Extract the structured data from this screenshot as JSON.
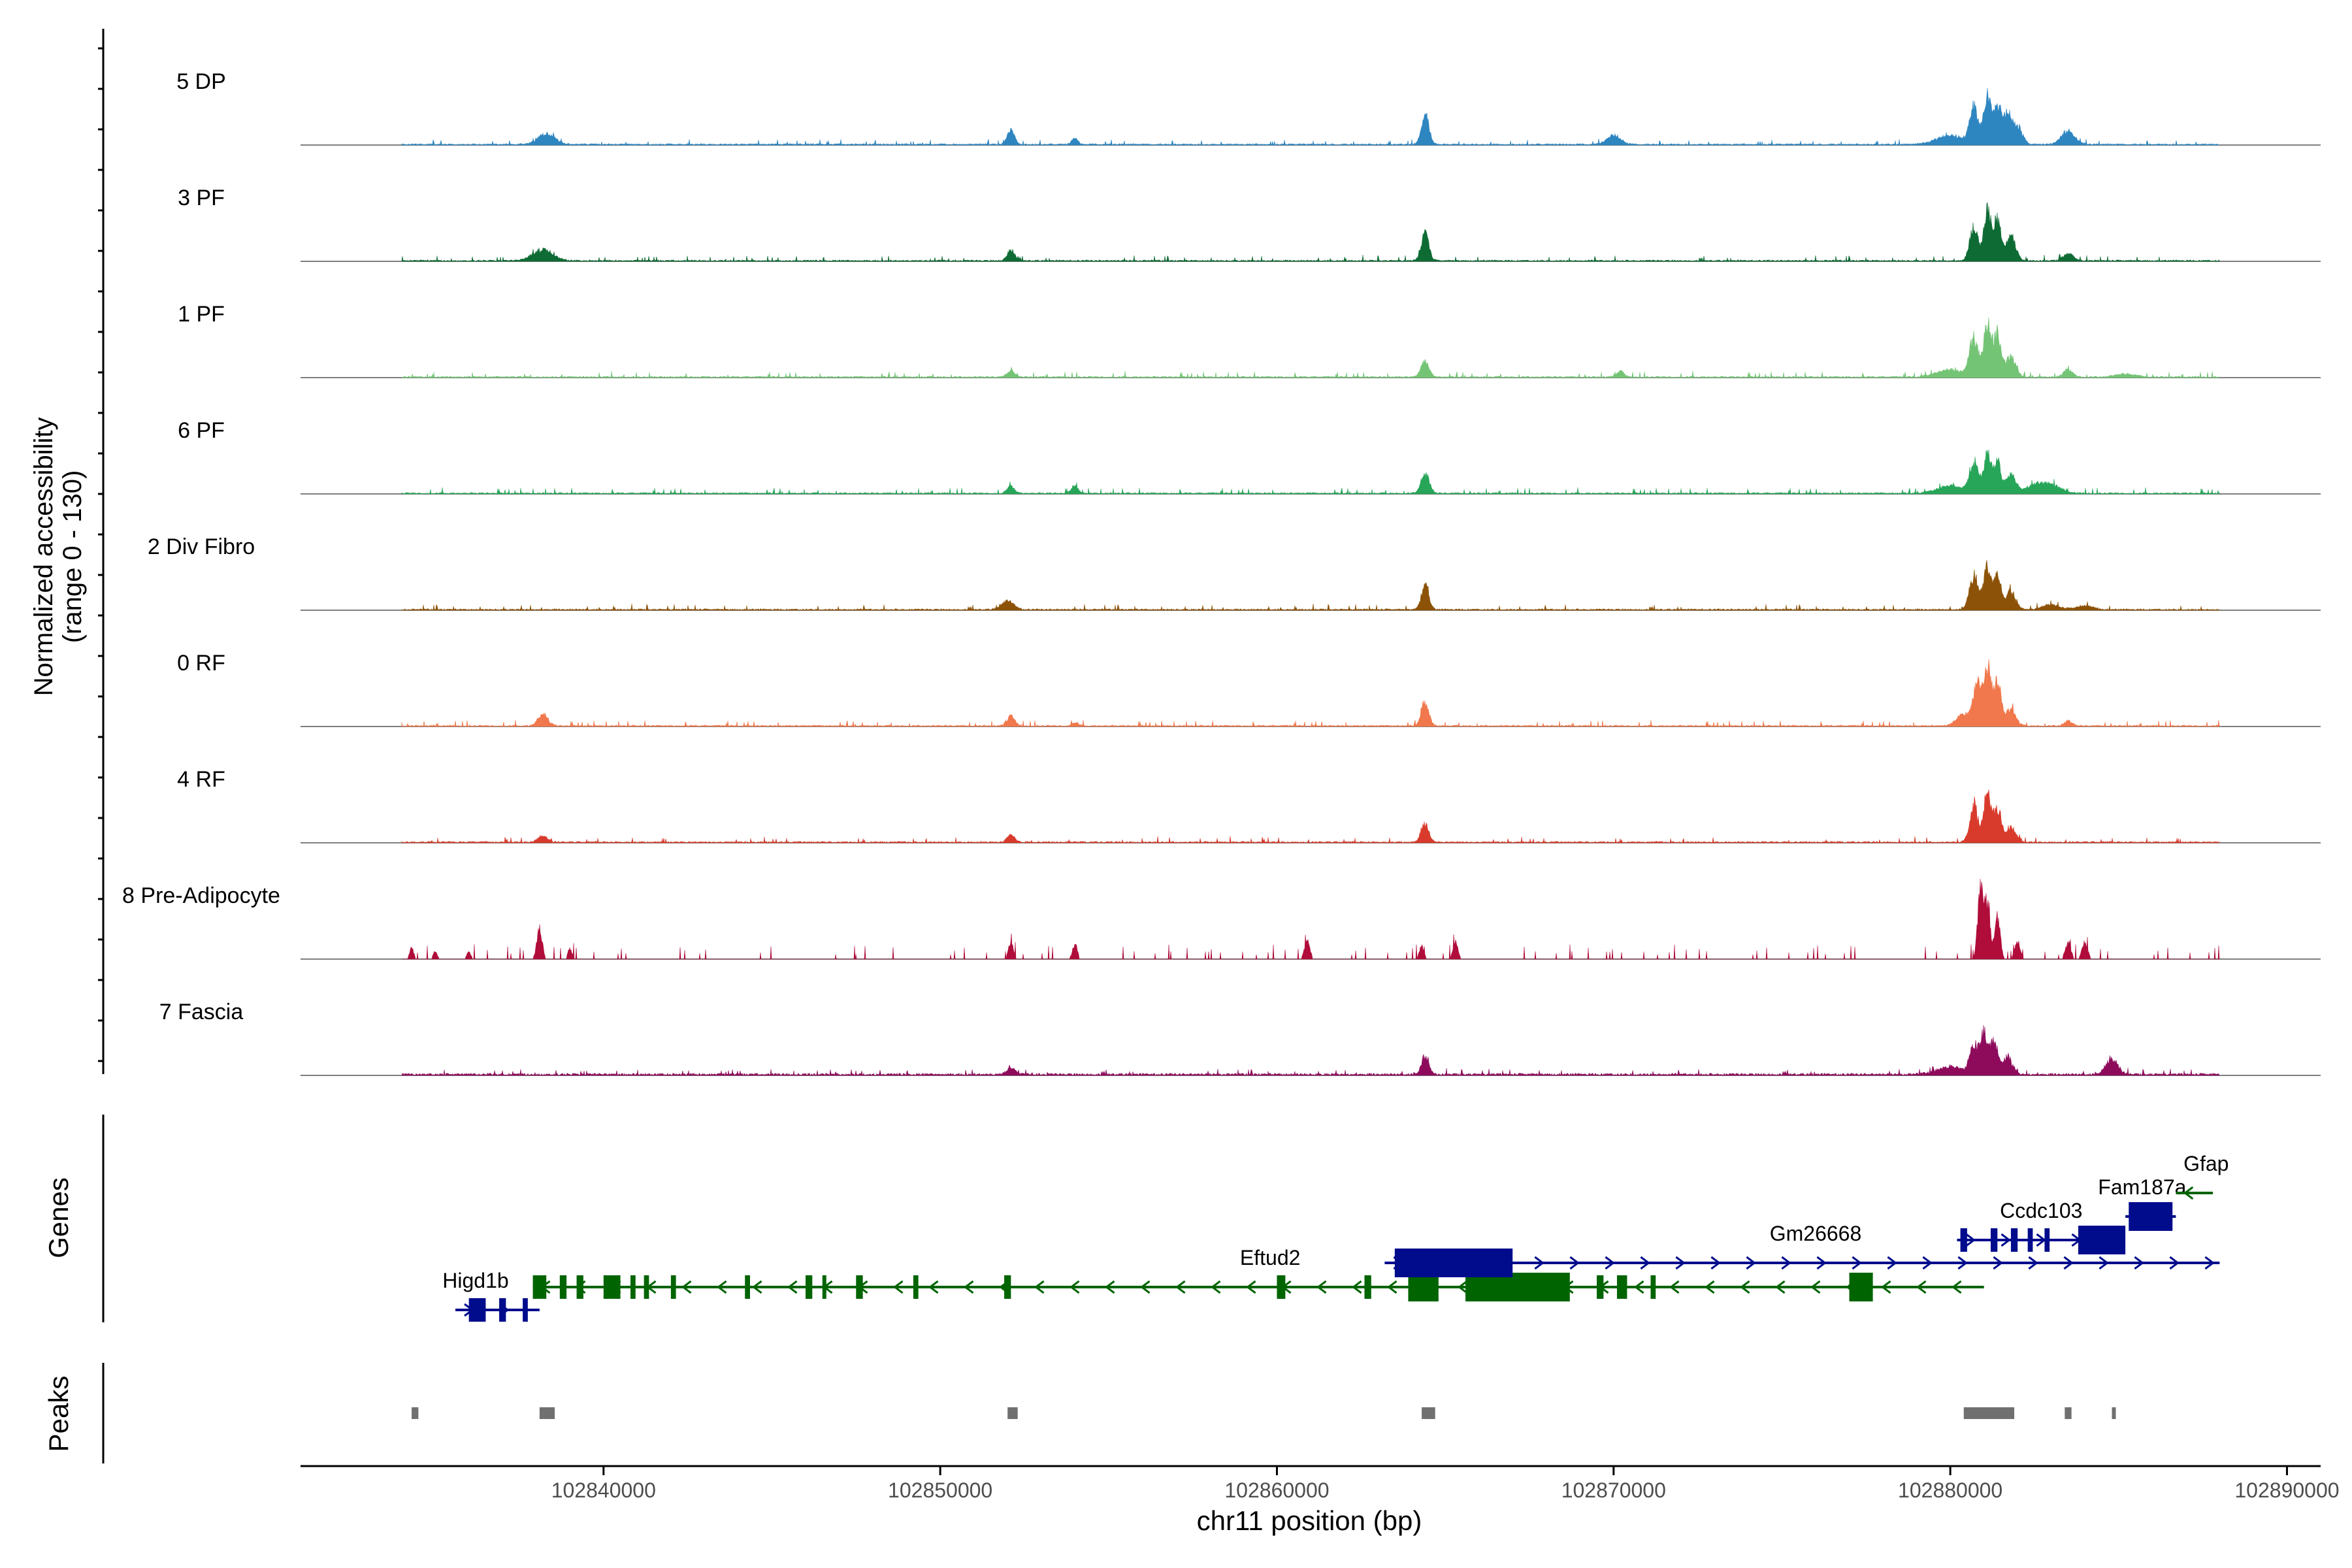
{
  "chart_data": {
    "type": "area",
    "title": "",
    "ylabel_line1": "Normalized accessibility",
    "ylabel_line2": "(range 0 - 130)",
    "genes_label": "Genes",
    "peaks_label": "Peaks",
    "xlabel": "chr11 position (bp)",
    "xlim": [
      102831000,
      102891000
    ],
    "data_range": [
      102834000,
      102888000
    ],
    "ylim": [
      0,
      130
    ],
    "xticks": [
      102840000,
      102850000,
      102860000,
      102870000,
      102880000,
      102890000
    ],
    "xtick_labels": [
      "102840000",
      "102850000",
      "102860000",
      "102870000",
      "102880000",
      "102890000"
    ],
    "tracks": [
      {
        "name": "5 DP",
        "color": "#2E86C1",
        "baseline": 2,
        "peaks": [
          [
            102838300,
            18,
            250
          ],
          [
            102852100,
            22,
            110
          ],
          [
            102854000,
            10,
            90
          ],
          [
            102864400,
            52,
            110
          ],
          [
            102870000,
            15,
            200
          ],
          [
            102880000,
            15,
            400
          ],
          [
            102880700,
            60,
            120
          ],
          [
            102881100,
            82,
            110
          ],
          [
            102881400,
            62,
            110
          ],
          [
            102881700,
            48,
            120
          ],
          [
            102882000,
            30,
            140
          ],
          [
            102883500,
            22,
            200
          ]
        ]
      },
      {
        "name": "3 PF",
        "color": "#0E6B34",
        "baseline": 2,
        "peaks": [
          [
            102838200,
            18,
            300
          ],
          [
            102852100,
            18,
            110
          ],
          [
            102864400,
            45,
            110
          ],
          [
            102880700,
            55,
            120
          ],
          [
            102881100,
            80,
            110
          ],
          [
            102881400,
            65,
            110
          ],
          [
            102881800,
            40,
            140
          ],
          [
            102883500,
            12,
            150
          ]
        ]
      },
      {
        "name": "1 PF",
        "color": "#74C476",
        "baseline": 2,
        "peaks": [
          [
            102852100,
            11,
            110
          ],
          [
            102864400,
            25,
            120
          ],
          [
            102870200,
            10,
            100
          ],
          [
            102880000,
            12,
            400
          ],
          [
            102880700,
            60,
            130
          ],
          [
            102881100,
            85,
            110
          ],
          [
            102881400,
            70,
            110
          ],
          [
            102881800,
            35,
            140
          ],
          [
            102883500,
            12,
            140
          ],
          [
            102885200,
            5,
            300
          ]
        ]
      },
      {
        "name": "6 PF",
        "color": "#27A559",
        "baseline": 2,
        "peaks": [
          [
            102852100,
            12,
            110
          ],
          [
            102854000,
            11,
            100
          ],
          [
            102864400,
            33,
            120
          ],
          [
            102880000,
            12,
            400
          ],
          [
            102880700,
            50,
            130
          ],
          [
            102881100,
            65,
            110
          ],
          [
            102881400,
            50,
            110
          ],
          [
            102881800,
            30,
            140
          ],
          [
            102882500,
            12,
            300
          ],
          [
            102883000,
            12,
            300
          ]
        ]
      },
      {
        "name": "2 Div Fibro",
        "color": "#8C5207",
        "baseline": 2,
        "peaks": [
          [
            102852000,
            14,
            180
          ],
          [
            102864400,
            40,
            110
          ],
          [
            102880700,
            55,
            130
          ],
          [
            102881100,
            68,
            110
          ],
          [
            102881400,
            55,
            110
          ],
          [
            102881800,
            30,
            140
          ],
          [
            102883000,
            8,
            250
          ],
          [
            102884000,
            6,
            250
          ]
        ]
      },
      {
        "name": "0 RF",
        "color": "#F0784C",
        "baseline": 2,
        "peaks": [
          [
            102838200,
            18,
            150
          ],
          [
            102852100,
            16,
            110
          ],
          [
            102854000,
            6,
            90
          ],
          [
            102864400,
            38,
            110
          ],
          [
            102880400,
            20,
            200
          ],
          [
            102880800,
            65,
            120
          ],
          [
            102881100,
            88,
            110
          ],
          [
            102881400,
            70,
            110
          ],
          [
            102881800,
            30,
            140
          ],
          [
            102883500,
            8,
            120
          ]
        ]
      },
      {
        "name": "4 RF",
        "color": "#D83A2C",
        "baseline": 2,
        "peaks": [
          [
            102838200,
            10,
            150
          ],
          [
            102852100,
            12,
            110
          ],
          [
            102864400,
            30,
            110
          ],
          [
            102880700,
            60,
            120
          ],
          [
            102881100,
            80,
            110
          ],
          [
            102881400,
            55,
            110
          ],
          [
            102881800,
            25,
            140
          ]
        ]
      },
      {
        "name": "8 Pre-Adipocyte",
        "color": "#B00D3B",
        "baseline": 0,
        "sparse": true,
        "peaks": [
          [
            102834300,
            18,
            60
          ],
          [
            102835000,
            12,
            60
          ],
          [
            102836000,
            12,
            60
          ],
          [
            102838100,
            48,
            80
          ],
          [
            102839000,
            18,
            60
          ],
          [
            102852100,
            28,
            70
          ],
          [
            102854000,
            25,
            70
          ],
          [
            102860900,
            30,
            80
          ],
          [
            102864300,
            22,
            70
          ],
          [
            102865300,
            28,
            70
          ],
          [
            102880900,
            120,
            80
          ],
          [
            102881100,
            90,
            80
          ],
          [
            102881400,
            70,
            80
          ],
          [
            102882000,
            30,
            80
          ],
          [
            102883500,
            28,
            80
          ],
          [
            102884000,
            30,
            80
          ]
        ]
      },
      {
        "name": "7 Fascia",
        "color": "#8E0B5C",
        "baseline": 3,
        "peaks": [
          [
            102852100,
            12,
            120
          ],
          [
            102864400,
            30,
            110
          ],
          [
            102880000,
            12,
            400
          ],
          [
            102880700,
            45,
            120
          ],
          [
            102881000,
            65,
            110
          ],
          [
            102881300,
            55,
            110
          ],
          [
            102881700,
            30,
            140
          ],
          [
            102884800,
            25,
            180
          ]
        ]
      }
    ],
    "genes": [
      {
        "name": "Higd1b",
        "strand": "+",
        "color": "#000C8C",
        "row": 3,
        "start": 102835600,
        "end": 102838100,
        "exons": [
          [
            102836000,
            102836500
          ],
          [
            102836900,
            102837100
          ],
          [
            102837600,
            102837750
          ]
        ],
        "label_x": 102836200
      },
      {
        "name": "Eftud2",
        "strand": "-",
        "color": "#006400",
        "row": 2,
        "start": 102837900,
        "end": 102881000,
        "exons": [
          [
            102837900,
            102838300
          ],
          [
            102838700,
            102838900
          ],
          [
            102839200,
            102839400
          ],
          [
            102840000,
            102840500
          ],
          [
            102840800,
            102840950
          ],
          [
            102841200,
            102841350
          ],
          [
            102842000,
            102842150
          ],
          [
            102844200,
            102844350
          ],
          [
            102846000,
            102846200
          ],
          [
            102846500,
            102846600
          ],
          [
            102847500,
            102847700
          ],
          [
            102849200,
            102849350
          ],
          [
            102851900,
            102852100
          ],
          [
            102860000,
            102860250
          ],
          [
            102862600,
            102862800
          ],
          [
            102863900,
            102864800
          ],
          [
            102865600,
            102868700
          ],
          [
            102869500,
            102869700
          ],
          [
            102870100,
            102870400
          ],
          [
            102871100,
            102871250
          ],
          [
            102877000,
            102877700
          ]
        ],
        "label_x": 102859800
      },
      {
        "name": "Gm26668",
        "strand": "+",
        "color": "#000C8C",
        "row": 1,
        "start": 102863200,
        "end": 102888000,
        "exons": [
          [
            102863500,
            102867000
          ]
        ],
        "label_x": 102876000
      },
      {
        "name": "Ccdc103",
        "strand": "+",
        "color": "#000C8C",
        "row": 0,
        "start": 102880200,
        "end": 102885000,
        "exons": [
          [
            102880300,
            102880500
          ],
          [
            102881200,
            102881400
          ],
          [
            102881800,
            102882000
          ],
          [
            102882300,
            102882450
          ],
          [
            102882800,
            102882950
          ],
          [
            102883800,
            102885200
          ]
        ],
        "label_x": 102882700
      },
      {
        "name": "Fam187a",
        "strand": "+",
        "color": "#000C8C",
        "row": -1,
        "start": 102885200,
        "end": 102886700,
        "exons": [
          [
            102885300,
            102886600
          ]
        ],
        "label_x": 102885700
      },
      {
        "name": "Gfap",
        "strand": "-",
        "color": "#006400",
        "row": -2,
        "start": 102886700,
        "end": 102887800,
        "exons": [],
        "label_x": 102887600
      }
    ],
    "peaks": [
      [
        102834300,
        102834500
      ],
      [
        102838100,
        102838550
      ],
      [
        102852000,
        102852300
      ],
      [
        102864300,
        102864700
      ],
      [
        102880400,
        102881900
      ],
      [
        102883400,
        102883600
      ],
      [
        102884800,
        102884900
      ]
    ]
  }
}
